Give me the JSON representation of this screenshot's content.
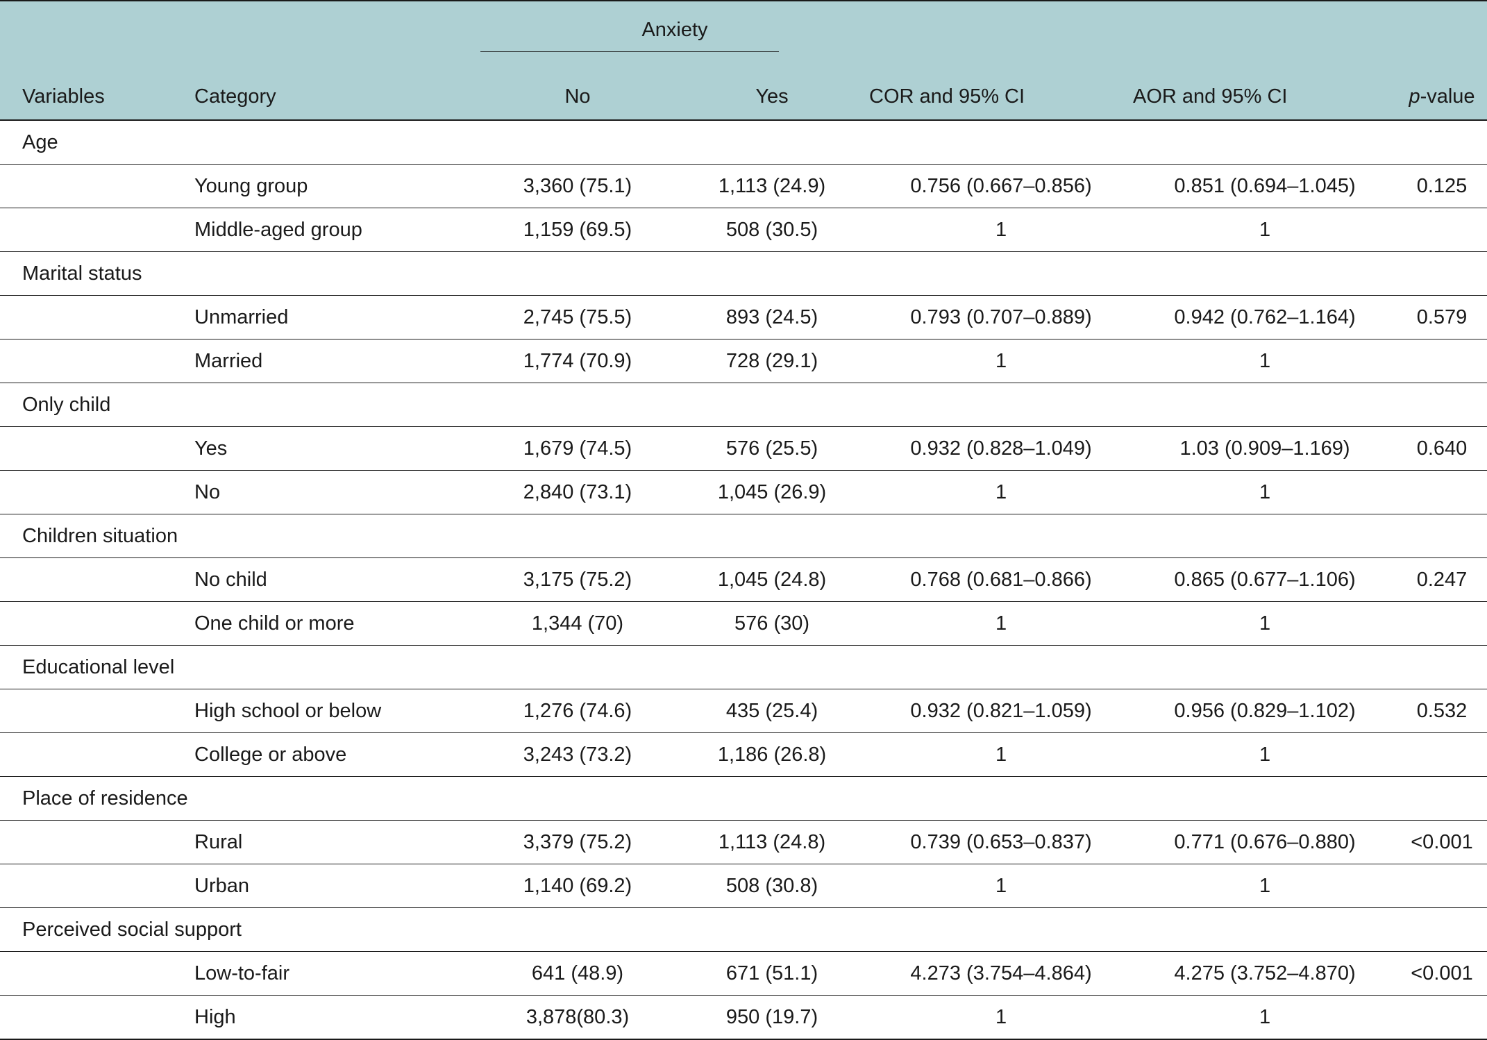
{
  "header": {
    "variables": "Variables",
    "category": "Category",
    "anxiety": "Anxiety",
    "no": "No",
    "yes": "Yes",
    "cor": "COR and 95% CI",
    "aor": "AOR and 95% CI",
    "p_italic": "p",
    "p_rest": "-value"
  },
  "groups": [
    {
      "variable": "Age",
      "rows": [
        {
          "category": "Young group",
          "no": "3,360 (75.1)",
          "yes": "1,113 (24.9)",
          "cor": "0.756 (0.667–0.856)",
          "aor": "0.851 (0.694–1.045)",
          "p": "0.125"
        },
        {
          "category": "Middle-aged group",
          "no": "1,159 (69.5)",
          "yes": "508 (30.5)",
          "cor": "1",
          "aor": "1",
          "p": ""
        }
      ]
    },
    {
      "variable": "Marital status",
      "rows": [
        {
          "category": "Unmarried",
          "no": "2,745 (75.5)",
          "yes": "893 (24.5)",
          "cor": "0.793 (0.707–0.889)",
          "aor": "0.942 (0.762–1.164)",
          "p": "0.579"
        },
        {
          "category": "Married",
          "no": "1,774 (70.9)",
          "yes": "728 (29.1)",
          "cor": "1",
          "aor": "1",
          "p": ""
        }
      ]
    },
    {
      "variable": "Only child",
      "rows": [
        {
          "category": "Yes",
          "no": "1,679 (74.5)",
          "yes": "576 (25.5)",
          "cor": "0.932 (0.828–1.049)",
          "aor": "1.03 (0.909–1.169)",
          "p": "0.640"
        },
        {
          "category": "No",
          "no": "2,840 (73.1)",
          "yes": "1,045 (26.9)",
          "cor": "1",
          "aor": "1",
          "p": ""
        }
      ]
    },
    {
      "variable": "Children situation",
      "rows": [
        {
          "category": "No child",
          "no": "3,175 (75.2)",
          "yes": "1,045 (24.8)",
          "cor": "0.768 (0.681–0.866)",
          "aor": "0.865 (0.677–1.106)",
          "p": "0.247"
        },
        {
          "category": "One child or more",
          "no": "1,344 (70)",
          "yes": "576 (30)",
          "cor": "1",
          "aor": "1",
          "p": ""
        }
      ]
    },
    {
      "variable": "Educational level",
      "rows": [
        {
          "category": "High school or below",
          "no": "1,276 (74.6)",
          "yes": "435 (25.4)",
          "cor": "0.932 (0.821–1.059)",
          "aor": "0.956 (0.829–1.102)",
          "p": "0.532"
        },
        {
          "category": "College or above",
          "no": "3,243 (73.2)",
          "yes": "1,186 (26.8)",
          "cor": "1",
          "aor": "1",
          "p": ""
        }
      ]
    },
    {
      "variable": "Place of residence",
      "rows": [
        {
          "category": "Rural",
          "no": "3,379 (75.2)",
          "yes": "1,113 (24.8)",
          "cor": "0.739 (0.653–0.837)",
          "aor": "0.771 (0.676–0.880)",
          "p": "<0.001"
        },
        {
          "category": "Urban",
          "no": "1,140 (69.2)",
          "yes": "508 (30.8)",
          "cor": "1",
          "aor": "1",
          "p": ""
        }
      ]
    },
    {
      "variable": "Perceived social support",
      "rows": [
        {
          "category": "Low-to-fair",
          "no": "641 (48.9)",
          "yes": "671 (51.1)",
          "cor": "4.273 (3.754–4.864)",
          "aor": "4.275 (3.752–4.870)",
          "p": "<0.001"
        },
        {
          "category": "High",
          "no": "3,878(80.3)",
          "yes": "950 (19.7)",
          "cor": "1",
          "aor": "1",
          "p": ""
        }
      ]
    }
  ]
}
